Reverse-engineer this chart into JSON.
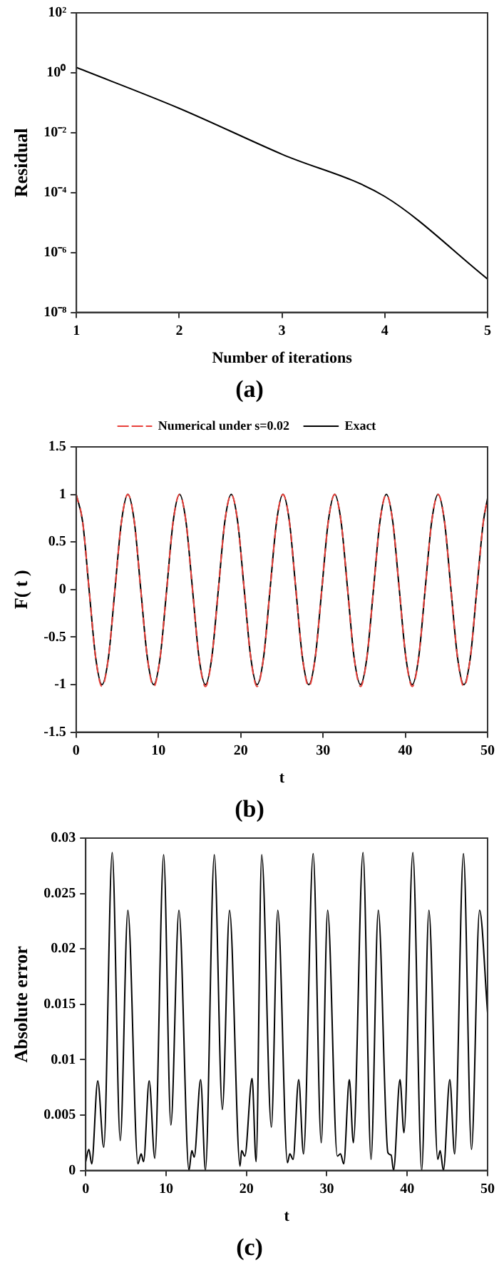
{
  "chart_data": [
    {
      "type": "line",
      "xlabel": "Number of iterations",
      "ylabel": "Residual",
      "annotations": [
        "(a)"
      ],
      "log": "y",
      "marker": "none",
      "legend": false,
      "x": [
        1,
        2,
        3,
        4,
        5
      ],
      "series": [
        {
          "color": "#000000",
          "values": [
            1.5,
            0.065,
            0.0019,
            7.4e-05,
            1.3e-07
          ]
        }
      ],
      "xlim": [
        1,
        5
      ],
      "xticks": [
        1,
        2,
        3,
        4,
        5
      ],
      "ylim": [
        1e-08,
        100
      ],
      "yticks": [
        {
          "value": 100,
          "label": "10²"
        },
        {
          "value": 1,
          "label": "10⁰"
        },
        {
          "value": 0.01,
          "label": "10⁻²"
        },
        {
          "value": 0.0001,
          "label": "10⁻⁴"
        },
        {
          "value": 1e-06,
          "label": "10⁻⁶"
        },
        {
          "value": 1e-08,
          "label": "10⁻⁸"
        }
      ]
    },
    {
      "type": "line",
      "xlabel": "t",
      "ylabel": "F( t )",
      "annotations": [
        "(b)"
      ],
      "marker": "none",
      "legend": "top",
      "x": [
        0,
        0.79,
        1.57,
        2.36,
        3.14,
        3.93,
        4.71,
        5.5,
        6.28,
        7.07,
        7.85,
        8.64,
        9.42,
        10.21,
        11,
        11.78,
        12.57,
        13.35,
        14.14,
        14.92,
        15.71,
        16.49,
        17.28,
        18.06,
        18.85,
        19.63,
        20.42,
        21.21,
        21.99,
        22.78,
        23.56,
        24.35,
        25.13,
        25.92,
        26.7,
        27.49,
        28.27,
        29.06,
        29.85,
        30.63,
        31.42,
        32.2,
        32.99,
        33.77,
        34.56,
        35.34,
        36.13,
        36.91,
        37.7,
        38.48,
        39.27,
        40.06,
        40.84,
        41.63,
        42.41,
        43.2,
        43.98,
        44.77,
        45.55,
        46.34,
        47.12,
        47.91,
        48.69,
        49.48,
        50
      ],
      "series": [
        {
          "name": "Numerical under s=0.02",
          "color": "#e8403a",
          "line_style": "dashed",
          "values": [
            1,
            0.71,
            0,
            -0.71,
            -1.02,
            -0.71,
            0,
            0.71,
            1,
            0.71,
            0,
            -0.71,
            -1.02,
            -0.71,
            0,
            0.71,
            1,
            0.71,
            0,
            -0.71,
            -1.02,
            -0.71,
            0,
            0.71,
            1,
            0.71,
            0,
            -0.71,
            -1.02,
            -0.71,
            0,
            0.71,
            1,
            0.71,
            0,
            -0.71,
            -1.02,
            -0.71,
            0,
            0.71,
            1,
            0.71,
            0,
            -0.71,
            -1.02,
            -0.71,
            0,
            0.71,
            1,
            0.71,
            0,
            -0.71,
            -1.02,
            -0.71,
            0,
            0.71,
            1,
            0.71,
            0,
            -0.71,
            -1.02,
            -0.71,
            0,
            0.71,
            0.96
          ]
        },
        {
          "name": "Exact",
          "color": "#000000",
          "line_style": "solid",
          "values": [
            1,
            0.71,
            0,
            -0.71,
            -1,
            -0.71,
            0,
            0.71,
            1,
            0.71,
            0,
            -0.71,
            -1,
            -0.71,
            0,
            0.71,
            1,
            0.71,
            0,
            -0.71,
            -1,
            -0.71,
            0,
            0.71,
            1,
            0.71,
            0,
            -0.71,
            -1,
            -0.71,
            0,
            0.71,
            1,
            0.71,
            0,
            -0.71,
            -1,
            -0.71,
            0,
            0.71,
            1,
            0.71,
            0,
            -0.71,
            -1,
            -0.71,
            0,
            0.71,
            1,
            0.71,
            0,
            -0.71,
            -1,
            -0.71,
            0,
            0.71,
            1,
            0.71,
            0,
            -0.71,
            -1,
            -0.71,
            0,
            0.71,
            0.96
          ]
        }
      ],
      "xlim": [
        0,
        50
      ],
      "xticks": [
        0,
        10,
        20,
        30,
        40,
        50
      ],
      "ylim": [
        -1.5,
        1.5
      ],
      "yticks": [
        -1.5,
        -1,
        -0.5,
        0,
        0.5,
        1,
        1.5
      ]
    },
    {
      "type": "line",
      "xlabel": "t",
      "ylabel": "Absolute error",
      "annotations": [
        "(c)"
      ],
      "marker": "none",
      "legend": false,
      "x": [
        0,
        0.4,
        0.75,
        1.5,
        2.25,
        3.3,
        4.3,
        5.25,
        6.5,
        6.9,
        7.2,
        7.9,
        8.6,
        9.7,
        10.6,
        11.6,
        12.85,
        13.2,
        13.5,
        14.3,
        14.9,
        16,
        17,
        17.9,
        19.2,
        19.4,
        19.8,
        20.7,
        21.2,
        21.9,
        23.1,
        23.9,
        25.1,
        25.4,
        25.8,
        26.5,
        27.1,
        28.3,
        29.3,
        30.1,
        31.3,
        31.7,
        32.1,
        32.8,
        33.3,
        34.5,
        35.5,
        36.4,
        37.6,
        38,
        38.3,
        39.1,
        39.6,
        40.7,
        41.8,
        42.7,
        43.8,
        44.1,
        44.5,
        45.3,
        45.9,
        47,
        48,
        49,
        50
      ],
      "series": [
        {
          "color": "#000000",
          "values": [
            0.0008,
            0.0019,
            0.0006,
            0.0081,
            0.0021,
            0.0287,
            0.0027,
            0.0235,
            0.0006,
            0.0015,
            0.0008,
            0.0081,
            0.0011,
            0.0285,
            0.0041,
            0.0235,
            0,
            0.0018,
            0.0012,
            0.0082,
            0,
            0.0285,
            0.0055,
            0.0235,
            0.0004,
            0.0018,
            0.0013,
            0.0083,
            0.0008,
            0.0285,
            0.0039,
            0.0235,
            0.0007,
            0.0015,
            0.001,
            0.0082,
            0.0015,
            0.0286,
            0.0025,
            0.0235,
            0.0013,
            0.0015,
            0.0006,
            0.0082,
            0.0025,
            0.0287,
            0.001,
            0.0235,
            0.0016,
            0.0014,
            0,
            0.0082,
            0.0034,
            0.0287,
            0,
            0.0235,
            0.001,
            0.0018,
            0,
            0.0082,
            0.0015,
            0.0286,
            0.0019,
            0.0235,
            0.0142
          ]
        }
      ],
      "xlim": [
        0,
        50
      ],
      "xticks": [
        0,
        10,
        20,
        30,
        40,
        50
      ],
      "ylim": [
        0,
        0.03
      ],
      "yticks": [
        0,
        0.005,
        0.01,
        0.015,
        0.02,
        0.025,
        0.03
      ]
    }
  ]
}
